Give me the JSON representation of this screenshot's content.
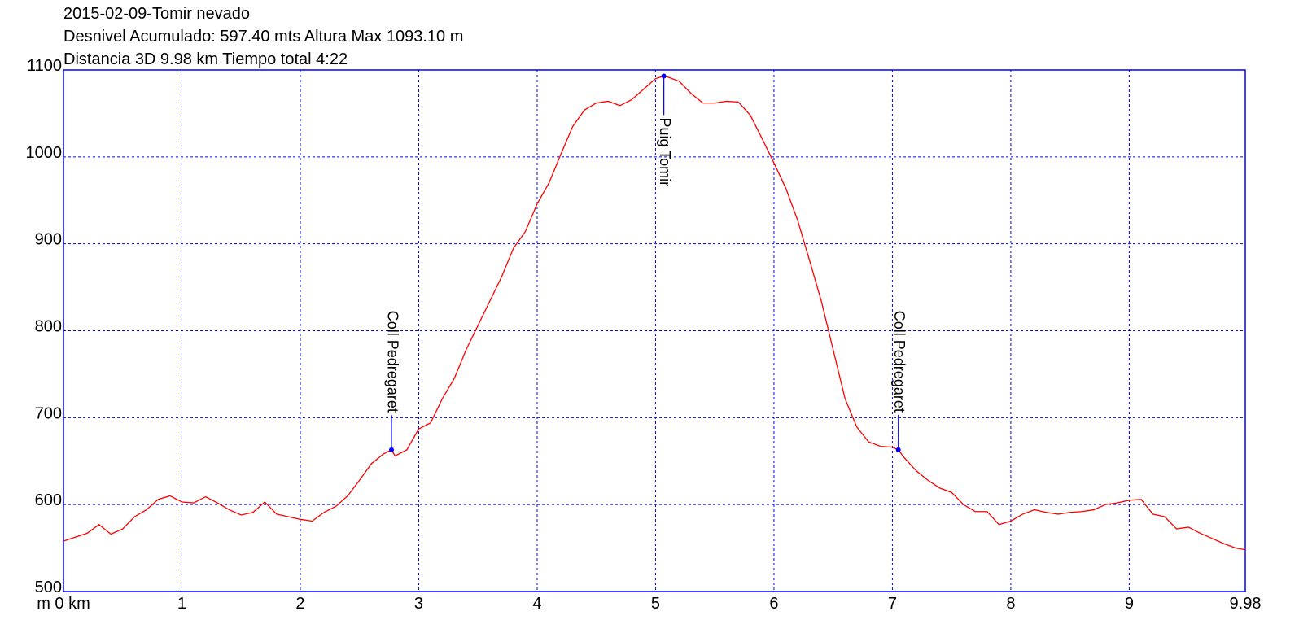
{
  "chart_data": {
    "type": "line",
    "title": "2015-02-09-Tomir nevado",
    "subtitle": [
      "Desnivel Acumulado: 597.40 mts  Altura Max 1093.10 m",
      "Distancia 3D 9.98 km  Tiempo total 4:22"
    ],
    "x": [
      0,
      0.2,
      0.3,
      0.4,
      0.5,
      0.6,
      0.7,
      0.8,
      0.9,
      1.0,
      1.1,
      1.2,
      1.3,
      1.4,
      1.5,
      1.6,
      1.7,
      1.8,
      1.9,
      2.0,
      2.1,
      2.2,
      2.3,
      2.4,
      2.5,
      2.6,
      2.7,
      2.77,
      2.8,
      2.9,
      3.0,
      3.1,
      3.2,
      3.3,
      3.4,
      3.5,
      3.6,
      3.7,
      3.8,
      3.9,
      4.0,
      4.1,
      4.2,
      4.3,
      4.4,
      4.5,
      4.6,
      4.7,
      4.8,
      4.9,
      5.0,
      5.07,
      5.1,
      5.2,
      5.3,
      5.4,
      5.5,
      5.6,
      5.7,
      5.8,
      5.9,
      6.0,
      6.1,
      6.2,
      6.3,
      6.4,
      6.5,
      6.6,
      6.7,
      6.8,
      6.9,
      7.0,
      7.05,
      7.1,
      7.2,
      7.3,
      7.4,
      7.5,
      7.6,
      7.7,
      7.8,
      7.9,
      8.0,
      8.1,
      8.2,
      8.3,
      8.4,
      8.5,
      8.6,
      8.7,
      8.8,
      8.9,
      9.0,
      9.1,
      9.2,
      9.3,
      9.4,
      9.5,
      9.6,
      9.7,
      9.8,
      9.9,
      9.98
    ],
    "series": [
      {
        "name": "Altura",
        "color": "#ff0000",
        "values": [
          558,
          567,
          577,
          566,
          572,
          586,
          594,
          606,
          610,
          603,
          602,
          609,
          602,
          594,
          588,
          591,
          603,
          589,
          586,
          583,
          581,
          591,
          598,
          610,
          628,
          647,
          658,
          663,
          656,
          663,
          687,
          694,
          722,
          745,
          778,
          806,
          834,
          862,
          895,
          914,
          946,
          970,
          1003,
          1035,
          1054,
          1062,
          1064,
          1059,
          1066,
          1078,
          1090,
          1093,
          1092,
          1087,
          1073,
          1062,
          1062,
          1064,
          1063,
          1048,
          1021,
          993,
          964,
          927,
          881,
          834,
          778,
          722,
          689,
          672,
          667,
          666,
          663,
          654,
          639,
          628,
          619,
          614,
          600,
          592,
          592,
          577,
          581,
          589,
          594,
          591,
          589,
          591,
          592,
          594,
          600,
          602,
          605,
          606,
          589,
          586,
          572,
          574,
          567,
          561,
          555,
          550,
          548
        ]
      }
    ],
    "waypoints": [
      {
        "label": "Coll Pedregaret",
        "x": 2.77,
        "y": 663
      },
      {
        "label": "Puig Tomir",
        "x": 5.07,
        "y": 1093
      },
      {
        "label": "Coll Pedregaret",
        "x": 7.05,
        "y": 663
      }
    ],
    "xlim": [
      0,
      9.98
    ],
    "ylim": [
      500,
      1100
    ],
    "xticks": [
      {
        "value": 0,
        "label": "m 0 km"
      },
      1,
      2,
      3,
      4,
      5,
      6,
      7,
      8,
      9,
      9.98
    ],
    "yticks": [
      500,
      600,
      700,
      800,
      900,
      1000,
      1100
    ],
    "grid": true,
    "grid_color": "#0000ff",
    "frame_color": "#0000ff",
    "marker_color": "#0000ff"
  }
}
